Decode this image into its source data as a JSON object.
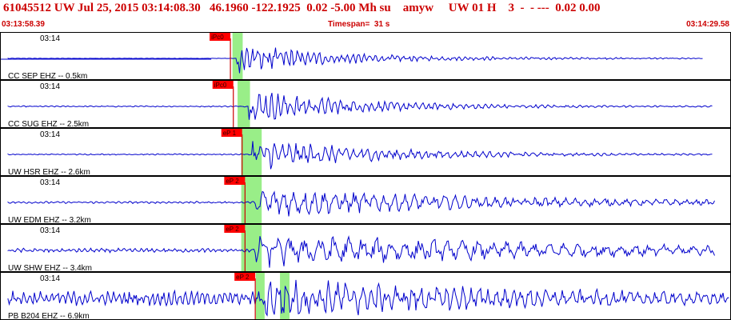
{
  "header": {
    "title": "61045512 UW Jul 25, 2015 03:14:08.30   46.1960 -122.1925  0.02 -5.00 Mh su    amyw     UW 01 H    3  -  - ---  0.02 0.00",
    "start_time": "03:13:58.39",
    "timespan": "Timespan=  31 s",
    "end_time": "03:14:29.58"
  },
  "colors": {
    "trace": "#0000cc",
    "pick": "#cc0000",
    "pick_box": "#ff0000",
    "highlight": "#99ee88",
    "grid": "#000000",
    "header_text": "#cc0000"
  },
  "panels": [
    {
      "time_label": "03:14",
      "station_label": "CC SEP EHZ -- 0.5km",
      "pick_label": "iPc0",
      "pick_frac": 0.313,
      "hl_frac": [
        0.318,
        0.332
      ],
      "onset_frac": 0.323,
      "noise": 0.01,
      "amp": 0.75,
      "decay": 0.12,
      "freq": 0.9,
      "end_frac": 0.962
    },
    {
      "time_label": "03:14",
      "station_label": "CC SUG EHZ -- 2.5km",
      "pick_label": "iPc0",
      "pick_frac": 0.317,
      "hl_frac": [
        0.325,
        0.342
      ],
      "onset_frac": 0.34,
      "noise": 0.03,
      "amp": 0.7,
      "decay": 0.09,
      "freq": 0.8,
      "end_frac": 0.975
    },
    {
      "time_label": "03:14",
      "station_label": "UW HSR EHZ -- 2.6km",
      "pick_label": "eP 1",
      "pick_frac": 0.329,
      "hl_frac": [
        0.33,
        0.358
      ],
      "onset_frac": 0.345,
      "noise": 0.03,
      "amp": 0.65,
      "decay": 0.07,
      "freq": 0.7,
      "end_frac": 0.975
    },
    {
      "time_label": "03:14",
      "station_label": "UW EDM EHZ -- 3.2km",
      "pick_label": "eP 2",
      "pick_frac": 0.333,
      "hl_frac": [
        0.33,
        0.358
      ],
      "onset_frac": 0.35,
      "noise": 0.05,
      "amp": 0.6,
      "decay": 0.03,
      "freq": 0.5,
      "end_frac": 0.978
    },
    {
      "time_label": "03:14",
      "station_label": "UW SHW EHZ -- 3.4km",
      "pick_label": "eP 2",
      "pick_frac": 0.333,
      "hl_frac": [
        0.33,
        0.358
      ],
      "onset_frac": 0.348,
      "noise": 0.1,
      "amp": 0.7,
      "decay": 0.02,
      "freq": 0.35,
      "end_frac": 0.978
    },
    {
      "time_label": "03:14",
      "station_label": "PB B204 EHZ -- 6.9km",
      "pick_label": "eP 2",
      "pick_frac": 0.347,
      "hl_frac": [
        0.35,
        0.362
      ],
      "hl2_frac": [
        0.383,
        0.396
      ],
      "onset_frac": 0.36,
      "noise": 0.35,
      "amp": 0.85,
      "decay": 0.02,
      "freq": 0.6,
      "end_frac": 0.998
    }
  ]
}
